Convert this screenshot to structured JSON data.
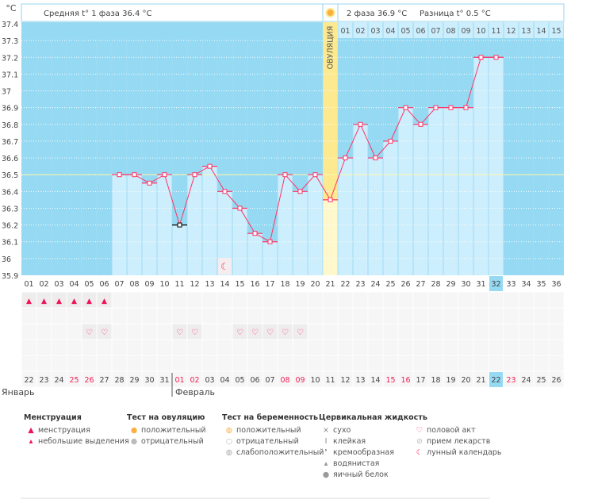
{
  "header": {
    "unit": "°C",
    "phase1_label": "Средняя t° 1 фаза",
    "phase1_value": "36.4 °C",
    "phase2_label": "2 фаза",
    "phase2_value": "36.9 °C",
    "diff_label": "Разница t°",
    "diff_value": "0.5 °C",
    "ovulation_label": "ОВУЛЯЦИЯ",
    "ovulation_icon": "sun-icon"
  },
  "colors": {
    "background": "#95d9f2",
    "bar": "#cdeefc",
    "ovulation": "#fde98f",
    "line": "#ff3366",
    "today": "#95d9f2",
    "weekend": "#ee2255"
  },
  "chart_data": {
    "type": "line",
    "ylabel": "°C",
    "ylim": [
      35.9,
      37.4
    ],
    "yticks": [
      "37.4",
      "37.3",
      "37.2",
      "37.1",
      "37",
      "36.9",
      "36.8",
      "36.7",
      "36.6",
      "36.5",
      "36.4",
      "36.3",
      "36.2",
      "36.1",
      "36",
      "35.9"
    ],
    "cycle_days": [
      "01",
      "02",
      "03",
      "04",
      "05",
      "06",
      "07",
      "08",
      "09",
      "10",
      "11",
      "12",
      "13",
      "14",
      "15",
      "16",
      "17",
      "18",
      "19",
      "20",
      "21",
      "22",
      "23",
      "24",
      "25",
      "26",
      "27",
      "28",
      "29",
      "30",
      "31",
      "32",
      "33",
      "34",
      "35",
      "36"
    ],
    "phase2_days": [
      "01",
      "02",
      "03",
      "04",
      "05",
      "06",
      "07",
      "08",
      "09",
      "10",
      "11",
      "12",
      "13",
      "14",
      "15"
    ],
    "dates": [
      "22",
      "23",
      "24",
      "25",
      "26",
      "27",
      "28",
      "29",
      "30",
      "31",
      "01",
      "02",
      "03",
      "04",
      "05",
      "06",
      "07",
      "08",
      "09",
      "10",
      "11",
      "12",
      "13",
      "14",
      "15",
      "16",
      "17",
      "18",
      "19",
      "20",
      "21",
      "22",
      "23",
      "24",
      "25",
      "26"
    ],
    "weekend_dates_idx": [
      3,
      4,
      10,
      11,
      17,
      18,
      24,
      25,
      32
    ],
    "temperatures": [
      null,
      null,
      null,
      null,
      null,
      null,
      36.5,
      36.5,
      36.45,
      36.5,
      36.2,
      36.5,
      36.55,
      36.4,
      36.3,
      36.15,
      36.1,
      36.5,
      36.4,
      36.5,
      36.35,
      36.6,
      36.8,
      36.6,
      36.7,
      36.9,
      36.8,
      36.9,
      36.9,
      36.9,
      37.2,
      37.2,
      null,
      null,
      null,
      null
    ],
    "excluded_days": [
      11
    ],
    "ovulation_day": 21,
    "today_day": 32,
    "coverline": 36.5,
    "menstruation_days": [
      1,
      2,
      3,
      4,
      5,
      6
    ],
    "intercourse_days": [
      5,
      6,
      11,
      12,
      15,
      16,
      17,
      18,
      19
    ],
    "moon_days": [
      14
    ]
  },
  "months": [
    "Январь",
    "Февраль"
  ],
  "legend": [
    {
      "title": "Менструация",
      "items": [
        {
          "icon": "blood-drop-icon",
          "label": "менструация"
        },
        {
          "icon": "small-drop-icon",
          "label": "небольшие выделения"
        }
      ]
    },
    {
      "title": "Тест на овуляцию",
      "items": [
        {
          "icon": "positive-circle-icon",
          "label": "положительный"
        },
        {
          "icon": "negative-circle-icon",
          "label": "отрицательный"
        }
      ]
    },
    {
      "title": "Тест на беременность",
      "items": [
        {
          "icon": "positive-test-icon",
          "label": "положительный"
        },
        {
          "icon": "negative-test-icon",
          "label": "отрицательный"
        },
        {
          "icon": "weak-test-icon",
          "label": "слабоположительный"
        }
      ]
    },
    {
      "title": "Цервикальная жидкость",
      "items": [
        {
          "icon": "cross-icon",
          "label": "сухо"
        },
        {
          "icon": "sticky-icon",
          "label": "клейкая"
        },
        {
          "icon": "creamy-icon",
          "label": "кремообразная"
        },
        {
          "icon": "watery-drop-icon",
          "label": "водянистая"
        },
        {
          "icon": "egg-white-icon",
          "label": "яичный белок"
        }
      ]
    },
    {
      "title": "",
      "items": [
        {
          "icon": "heart-icon",
          "label": "половой акт"
        },
        {
          "icon": "pill-icon",
          "label": "прием лекарств"
        },
        {
          "icon": "moon-icon",
          "label": "лунный календарь"
        }
      ]
    }
  ]
}
